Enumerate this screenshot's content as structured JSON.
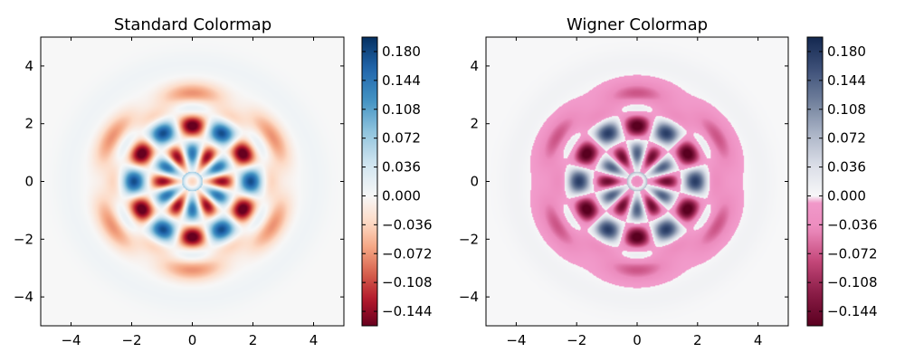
{
  "chart_data": [
    {
      "type": "heatmap",
      "title": "Standard Colormap",
      "xlabel": "",
      "ylabel": "",
      "xlim": [
        -5,
        5
      ],
      "ylim": [
        -5,
        5
      ],
      "x_ticks": [
        "−4",
        "−2",
        "0",
        "2",
        "4"
      ],
      "y_ticks": [
        "4",
        "2",
        "0",
        "−2",
        "−4"
      ],
      "grid": false,
      "colormap": "RdBu",
      "colorbar": {
        "range": [
          -0.162,
          0.198
        ],
        "ticks": [
          "0.180",
          "0.144",
          "0.108",
          "0.072",
          "0.036",
          "0.000",
          "−0.036",
          "−0.072",
          "−0.108",
          "−0.144"
        ]
      }
    },
    {
      "type": "heatmap",
      "title": "Wigner Colormap",
      "xlabel": "",
      "ylabel": "",
      "xlim": [
        -5,
        5
      ],
      "ylim": [
        -5,
        5
      ],
      "x_ticks": [
        "−4",
        "−2",
        "0",
        "2",
        "4"
      ],
      "y_ticks": [
        "4",
        "2",
        "0",
        "−2",
        "−4"
      ],
      "grid": false,
      "colormap": "wigner",
      "colorbar": {
        "range": [
          -0.162,
          0.198
        ],
        "ticks": [
          "0.180",
          "0.144",
          "0.108",
          "0.072",
          "0.036",
          "0.000",
          "−0.036",
          "−0.072",
          "−0.108",
          "−0.144"
        ]
      }
    }
  ],
  "colors": {
    "rdbu": [
      "#67001f",
      "#b2182b",
      "#d6604d",
      "#f4a582",
      "#fddbc7",
      "#f7f7f7",
      "#d1e5f0",
      "#92c5de",
      "#4393c3",
      "#2166ac",
      "#053061"
    ],
    "wigner_neg": [
      "#5a0020",
      "#8a1c46",
      "#c4487a",
      "#ec8cbe",
      "#f29ccc"
    ],
    "wigner_pos": [
      "#f7f7f8",
      "#d9dde6",
      "#a9b2c5",
      "#6f7f9b",
      "#3d5078",
      "#132850"
    ]
  }
}
